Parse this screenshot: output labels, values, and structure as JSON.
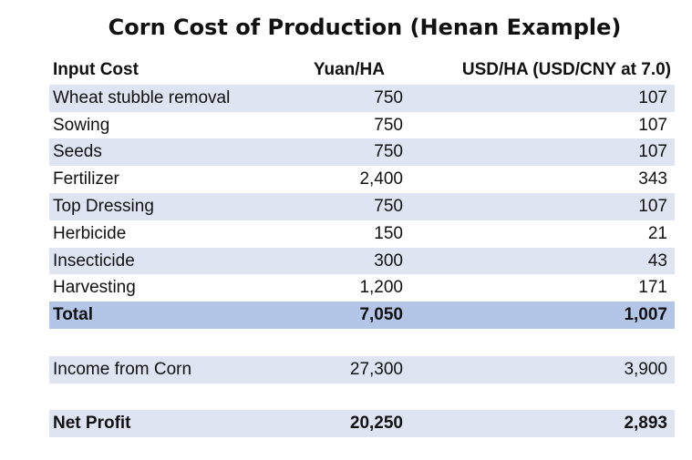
{
  "title": "Corn Cost of Production (Henan Example)",
  "headers": {
    "input_cost": "Input Cost",
    "yuan": "Yuan/HA",
    "usd": "USD/HA (USD/CNY at 7.0)"
  },
  "rows": [
    {
      "label": "Wheat stubble removal",
      "yuan": "750",
      "usd": "107"
    },
    {
      "label": "Sowing",
      "yuan": "750",
      "usd": "107"
    },
    {
      "label": "Seeds",
      "yuan": "750",
      "usd": "107"
    },
    {
      "label": "Fertilizer",
      "yuan": "2,400",
      "usd": "343"
    },
    {
      "label": "Top Dressing",
      "yuan": "750",
      "usd": "107"
    },
    {
      "label": "Herbicide",
      "yuan": "150",
      "usd": "21"
    },
    {
      "label": "Insecticide",
      "yuan": "300",
      "usd": "43"
    },
    {
      "label": "Harvesting",
      "yuan": "1,200",
      "usd": "171"
    }
  ],
  "total": {
    "label": "Total",
    "yuan": "7,050",
    "usd": "1,007"
  },
  "income": {
    "label": "Income from Corn",
    "yuan": "27,300",
    "usd": "3,900"
  },
  "net_profit": {
    "label": "Net Profit",
    "yuan": "20,250",
    "usd": "2,893"
  },
  "colors": {
    "band_light": "#dee4f2",
    "band_total": "#b4c6e7",
    "text": "#111111"
  }
}
